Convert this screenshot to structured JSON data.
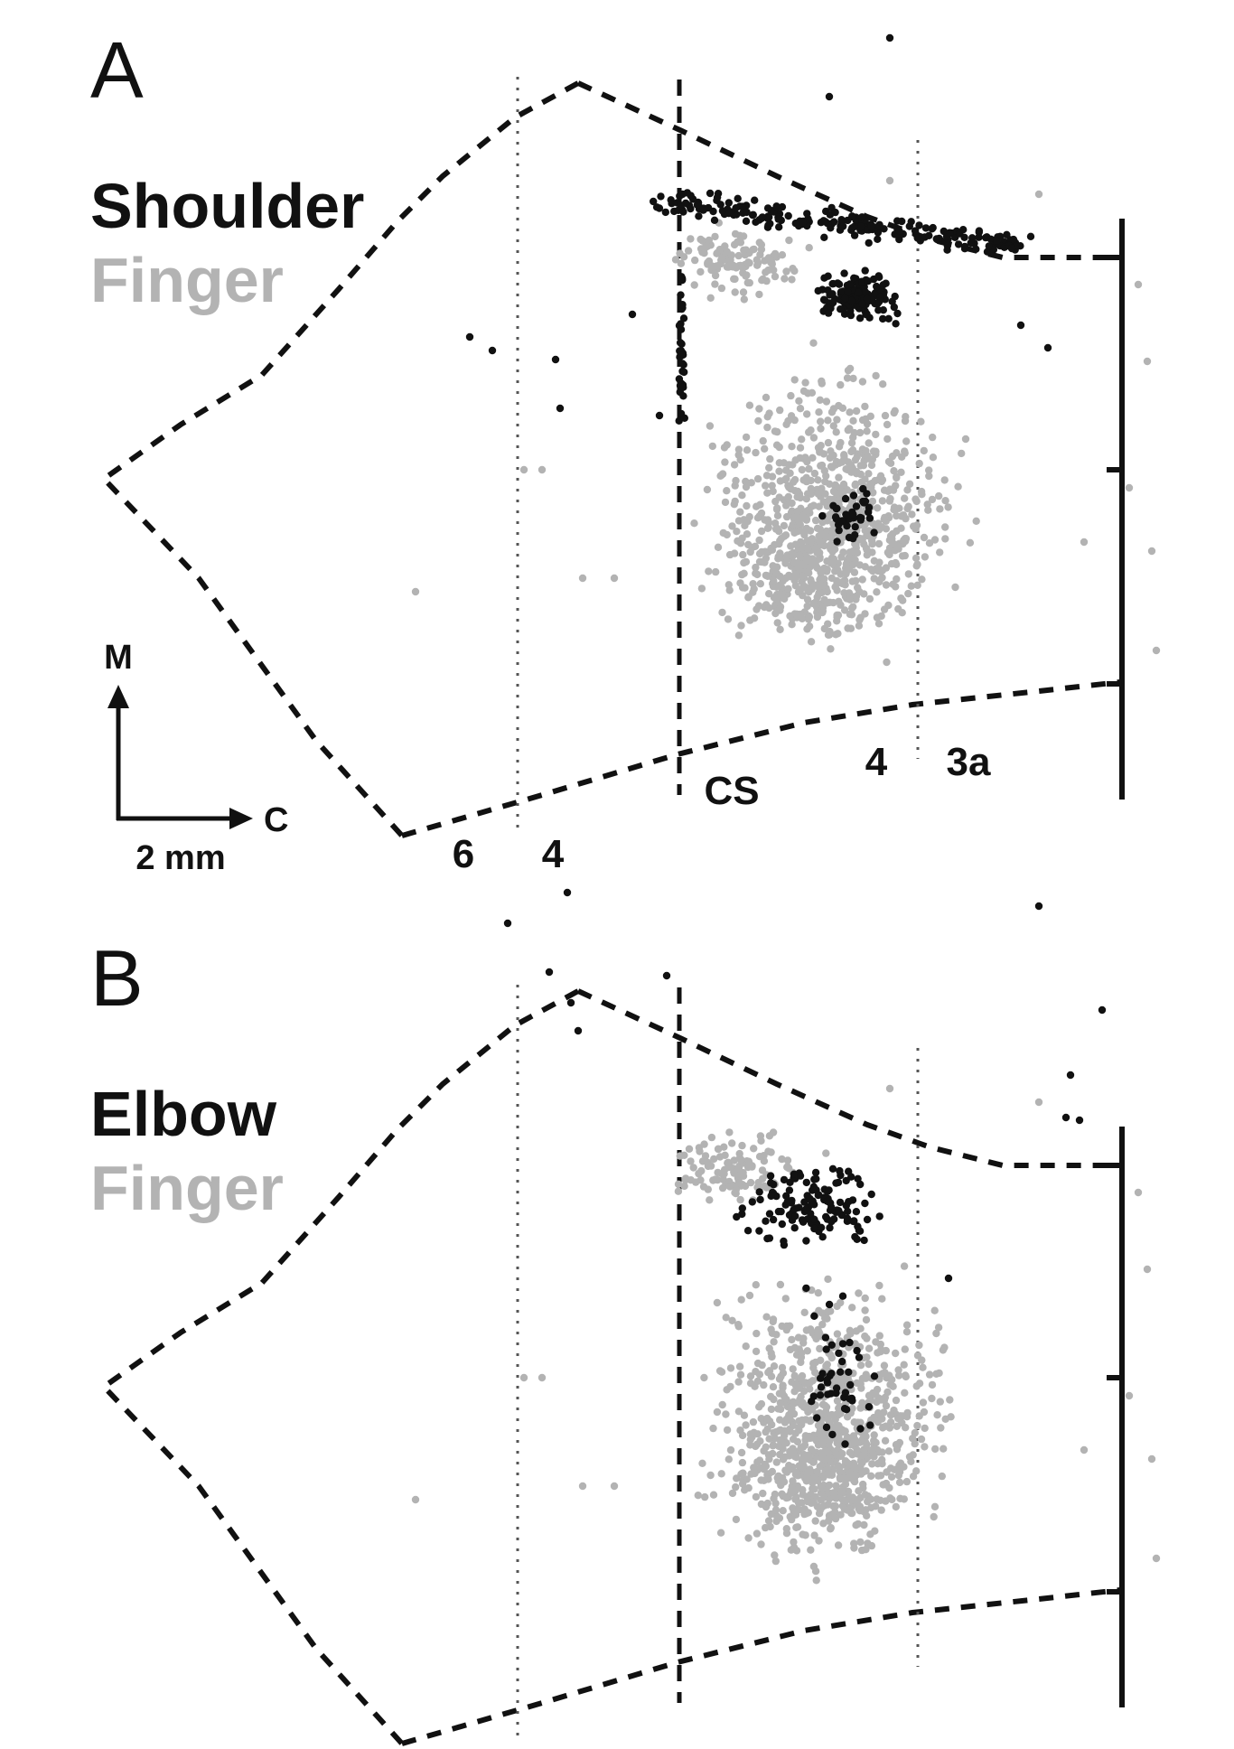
{
  "figure": {
    "panels": [
      {
        "letter": "A",
        "legend_primary": "Shoulder",
        "legend_secondary": "Finger",
        "area_labels": [
          "6",
          "4",
          "CS",
          "4",
          "3a"
        ],
        "orientation": {
          "medial": "M",
          "caudal": "C",
          "scale": "2 mm"
        }
      },
      {
        "letter": "B",
        "legend_primary": "Elbow",
        "legend_secondary": "Finger"
      }
    ],
    "colors": {
      "primary": "#111111",
      "secondary": "#b3b3b3",
      "outline": "#111111"
    }
  }
}
